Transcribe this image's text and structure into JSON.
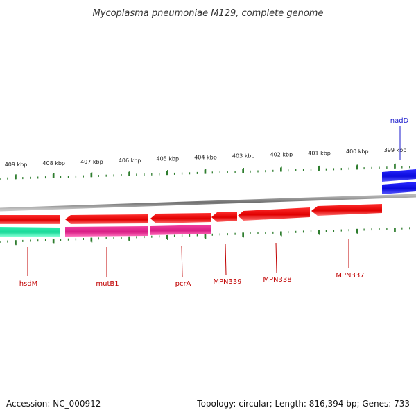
{
  "title": "Mycoplasma pneumoniae M129, complete genome",
  "footer": {
    "accession": "Accession: NC_000912",
    "summary": "Topology: circular; Length: 816,394 bp; Genes: 733"
  },
  "colors": {
    "forward_cds": "#1a1adf",
    "reverse_cds": "#e00000",
    "gene_magenta": "#e0208a",
    "gene_green": "#22e0a0",
    "tick": "#2e7d2e",
    "backbone": "#8a8a8a",
    "label_red": "#c00000",
    "label_blue": "#1a1acc"
  },
  "ruler": {
    "ticks": [
      {
        "label": "409 kbp"
      },
      {
        "label": "408 kbp"
      },
      {
        "label": "407 kbp"
      },
      {
        "label": "406 kbp"
      },
      {
        "label": "405 kbp"
      },
      {
        "label": "404 kbp"
      },
      {
        "label": "403 kbp"
      },
      {
        "label": "402 kbp"
      },
      {
        "label": "401 kbp"
      },
      {
        "label": "400 kbp"
      },
      {
        "label": "399 kbp"
      }
    ]
  },
  "genes": [
    {
      "name": "nadD",
      "strand": "forward",
      "color": "blue"
    },
    {
      "name": "MPN337",
      "strand": "reverse",
      "color": "red"
    },
    {
      "name": "MPN338",
      "strand": "reverse",
      "color": "red"
    },
    {
      "name": "MPN339",
      "strand": "reverse",
      "color": "red"
    },
    {
      "name": "pcrA",
      "strand": "reverse",
      "color": "red"
    },
    {
      "name": "mutB1",
      "strand": "reverse",
      "color": "red"
    },
    {
      "name": "hsdM",
      "strand": "reverse",
      "color": "red"
    }
  ]
}
